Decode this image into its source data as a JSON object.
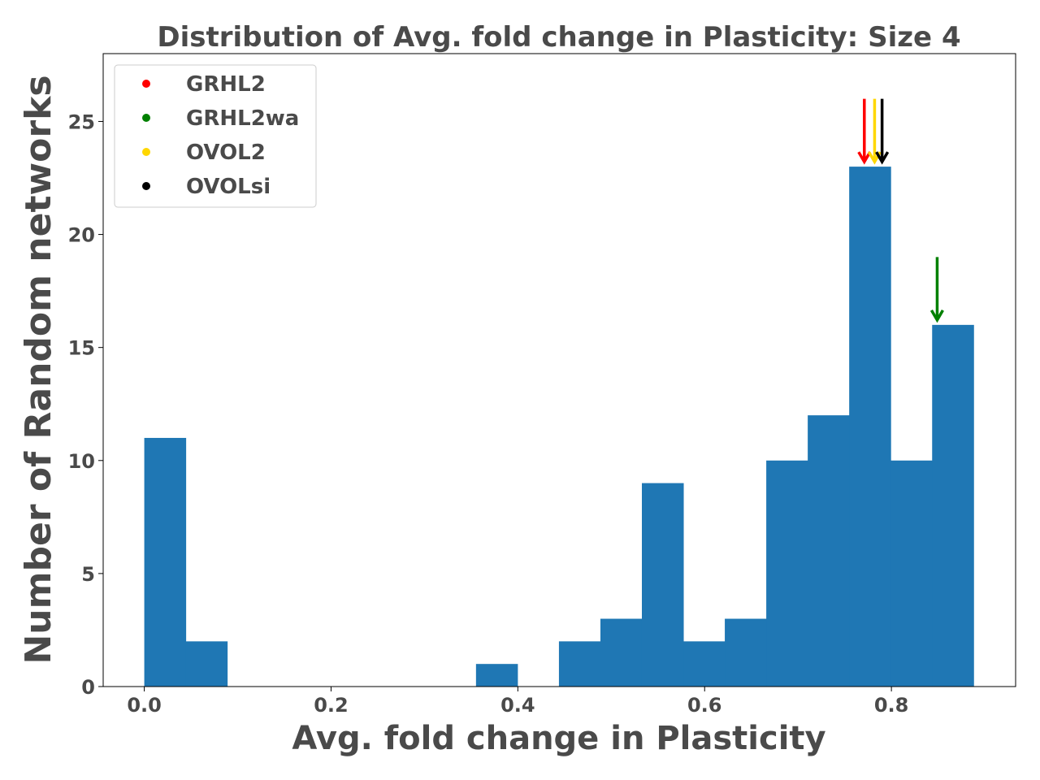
{
  "chart_data": {
    "type": "bar",
    "title": "Distribution of Avg. fold change in Plasticity: Size 4",
    "xlabel": "Avg. fold change in Plasticity",
    "ylabel": "Number of Random networks",
    "xlim": [
      -0.044,
      0.933
    ],
    "ylim": [
      0,
      28
    ],
    "xticks": [
      "0.0",
      "0.2",
      "0.4",
      "0.6",
      "0.8"
    ],
    "xtick_values": [
      0.0,
      0.2,
      0.4,
      0.6,
      0.8
    ],
    "yticks": [
      "0",
      "5",
      "10",
      "15",
      "20",
      "25"
    ],
    "ytick_values": [
      0,
      5,
      10,
      15,
      20,
      25
    ],
    "bin_edges": [
      0.0,
      0.0444,
      0.0888,
      0.1332,
      0.1776,
      0.222,
      0.2664,
      0.3108,
      0.3552,
      0.3996,
      0.444,
      0.4884,
      0.5328,
      0.5772,
      0.6216,
      0.666,
      0.7104,
      0.7548,
      0.7992,
      0.8436,
      0.888
    ],
    "values": [
      11,
      2,
      0,
      0,
      0,
      0,
      0,
      0,
      1,
      0,
      2,
      3,
      9,
      2,
      3,
      10,
      12,
      23,
      10,
      16
    ],
    "bar_color": "#1f77b4",
    "legend_position": "top-left",
    "markers": [
      {
        "name": "GRHL2",
        "x": 0.771,
        "y_start": 26,
        "y_end": 23,
        "color": "#ff0000"
      },
      {
        "name": "GRHL2wa",
        "x": 0.849,
        "y_start": 19,
        "y_end": 16,
        "color": "#008000"
      },
      {
        "name": "OVOL2",
        "x": 0.782,
        "y_start": 26,
        "y_end": 23,
        "color": "#ffd700"
      },
      {
        "name": "OVOLsi",
        "x": 0.79,
        "y_start": 26,
        "y_end": 23,
        "color": "#000000"
      }
    ]
  }
}
